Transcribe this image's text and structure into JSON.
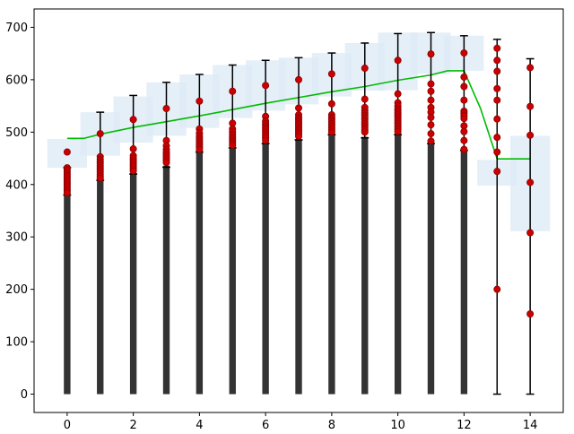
{
  "chart_data": {
    "type": "bar",
    "title": "",
    "xlabel": "",
    "ylabel": "",
    "xlim": [
      -1,
      15
    ],
    "ylim": [
      -35,
      735
    ],
    "grid": false,
    "legend": "none",
    "xticks": [
      0,
      2,
      4,
      6,
      8,
      10,
      12,
      14
    ],
    "xtick_labels": [
      "0",
      "2",
      "4",
      "6",
      "8",
      "10",
      "12",
      "14"
    ],
    "yticks": [
      0,
      100,
      200,
      300,
      400,
      500,
      600,
      700
    ],
    "ytick_labels": [
      "0",
      "100",
      "200",
      "300",
      "400",
      "500",
      "600",
      "700"
    ],
    "categories": [
      0,
      1,
      2,
      3,
      4,
      5,
      6,
      7,
      8,
      9,
      10,
      11,
      12,
      13,
      14
    ],
    "bars": [
      {
        "x": 0,
        "value": 380
      },
      {
        "x": 1,
        "value": 410
      },
      {
        "x": 2,
        "value": 422
      },
      {
        "x": 3,
        "value": 436
      },
      {
        "x": 4,
        "value": 465
      },
      {
        "x": 5,
        "value": 470
      },
      {
        "x": 6,
        "value": 480
      },
      {
        "x": 7,
        "value": 487
      },
      {
        "x": 8,
        "value": 497
      },
      {
        "x": 9,
        "value": 491
      },
      {
        "x": 10,
        "value": 497
      },
      {
        "x": 11,
        "value": 480
      },
      {
        "x": 12,
        "value": 467
      }
    ],
    "error_bars": [
      {
        "x": 0,
        "low": 380,
        "high": 432
      },
      {
        "x": 1,
        "low": 408,
        "high": 538
      },
      {
        "x": 2,
        "low": 420,
        "high": 570
      },
      {
        "x": 3,
        "low": 433,
        "high": 595
      },
      {
        "x": 4,
        "low": 462,
        "high": 610
      },
      {
        "x": 5,
        "low": 470,
        "high": 628
      },
      {
        "x": 6,
        "low": 478,
        "high": 637
      },
      {
        "x": 7,
        "low": 485,
        "high": 642
      },
      {
        "x": 8,
        "low": 495,
        "high": 651
      },
      {
        "x": 9,
        "low": 489,
        "high": 670
      },
      {
        "x": 10,
        "low": 495,
        "high": 688
      },
      {
        "x": 11,
        "low": 478,
        "high": 690
      },
      {
        "x": 12,
        "low": 465,
        "high": 684
      },
      {
        "x": 13,
        "low": 0,
        "high": 677
      },
      {
        "x": 14,
        "low": 0,
        "high": 640
      }
    ],
    "shaded_boxes": [
      {
        "x": 0,
        "low": 432,
        "high": 487
      },
      {
        "x": 1,
        "low": 455,
        "high": 538
      },
      {
        "x": 2,
        "low": 480,
        "high": 568
      },
      {
        "x": 3,
        "low": 493,
        "high": 595
      },
      {
        "x": 4,
        "low": 508,
        "high": 610
      },
      {
        "x": 5,
        "low": 527,
        "high": 628
      },
      {
        "x": 6,
        "low": 541,
        "high": 637
      },
      {
        "x": 7,
        "low": 553,
        "high": 642
      },
      {
        "x": 8,
        "low": 568,
        "high": 651
      },
      {
        "x": 9,
        "low": 579,
        "high": 670
      },
      {
        "x": 10,
        "low": 580,
        "high": 690
      },
      {
        "x": 11,
        "low": 611,
        "high": 690
      },
      {
        "x": 12,
        "low": 617,
        "high": 684
      },
      {
        "x": 13,
        "low": 398,
        "high": 447
      },
      {
        "x": 14,
        "low": 311,
        "high": 493
      }
    ],
    "scatter_points": [
      {
        "x": 0,
        "y": [
          462,
          432,
          428,
          424,
          420,
          416,
          412,
          408,
          404,
          400,
          396,
          392,
          388,
          384
        ]
      },
      {
        "x": 1,
        "y": [
          497,
          453,
          448,
          444,
          440,
          436,
          432,
          428,
          424,
          420,
          416,
          412
        ]
      },
      {
        "x": 2,
        "y": [
          524,
          468,
          455,
          450,
          446,
          442,
          438,
          434,
          430,
          426
        ]
      },
      {
        "x": 3,
        "y": [
          545,
          484,
          474,
          467,
          462,
          458,
          454,
          450,
          446,
          442
        ]
      },
      {
        "x": 4,
        "y": [
          559,
          506,
          498,
          492,
          487,
          483,
          479,
          475,
          471,
          467
        ]
      },
      {
        "x": 5,
        "y": [
          578,
          517,
          506,
          500,
          495,
          491,
          487,
          483,
          479,
          475
        ]
      },
      {
        "x": 6,
        "y": [
          589,
          530,
          521,
          516,
          512,
          508,
          504,
          500,
          496,
          492,
          488,
          484
        ]
      },
      {
        "x": 7,
        "y": [
          600,
          546,
          533,
          528,
          524,
          520,
          516,
          512,
          508,
          504,
          500,
          496,
          492
        ]
      },
      {
        "x": 8,
        "y": [
          611,
          554,
          533,
          528,
          524,
          520,
          516,
          512,
          508,
          504,
          500
        ]
      },
      {
        "x": 9,
        "y": [
          622,
          563,
          547,
          541,
          536,
          532,
          528,
          524,
          520,
          516,
          512,
          508,
          504,
          500
        ]
      },
      {
        "x": 10,
        "y": [
          637,
          573,
          556,
          550,
          545,
          541,
          537,
          533,
          529,
          525,
          521,
          517,
          513,
          509,
          505,
          501
        ]
      },
      {
        "x": 11,
        "y": [
          649,
          592,
          578,
          561,
          547,
          538,
          528,
          514,
          497,
          483
        ]
      },
      {
        "x": 12,
        "y": [
          651,
          605,
          587,
          561,
          540,
          536,
          531,
          526,
          512,
          501,
          484,
          467
        ]
      },
      {
        "x": 13,
        "y": [
          660,
          637,
          616,
          583,
          561,
          525,
          490,
          462,
          425,
          200
        ]
      },
      {
        "x": 14,
        "y": [
          623,
          549,
          494,
          404,
          308,
          153
        ]
      }
    ],
    "mean_line": [
      {
        "x": 0,
        "y": 488
      },
      {
        "x": 0.5,
        "y": 488
      },
      {
        "x": 1,
        "y": 496
      },
      {
        "x": 2,
        "y": 509
      },
      {
        "x": 3,
        "y": 520
      },
      {
        "x": 4,
        "y": 531
      },
      {
        "x": 5,
        "y": 543
      },
      {
        "x": 6,
        "y": 555
      },
      {
        "x": 7,
        "y": 566
      },
      {
        "x": 8,
        "y": 577
      },
      {
        "x": 9,
        "y": 587
      },
      {
        "x": 10,
        "y": 599
      },
      {
        "x": 11,
        "y": 609
      },
      {
        "x": 11.5,
        "y": 617
      },
      {
        "x": 12,
        "y": 617
      },
      {
        "x": 12.5,
        "y": 545
      },
      {
        "x": 13,
        "y": 449
      },
      {
        "x": 14,
        "y": 449
      }
    ],
    "colors": {
      "bar": "#333333",
      "points": "#cc0000",
      "point_edge": "#8b0000",
      "line": "#00bb00",
      "box": "#dce9f5",
      "error": "#000000",
      "axis": "#000000"
    }
  }
}
